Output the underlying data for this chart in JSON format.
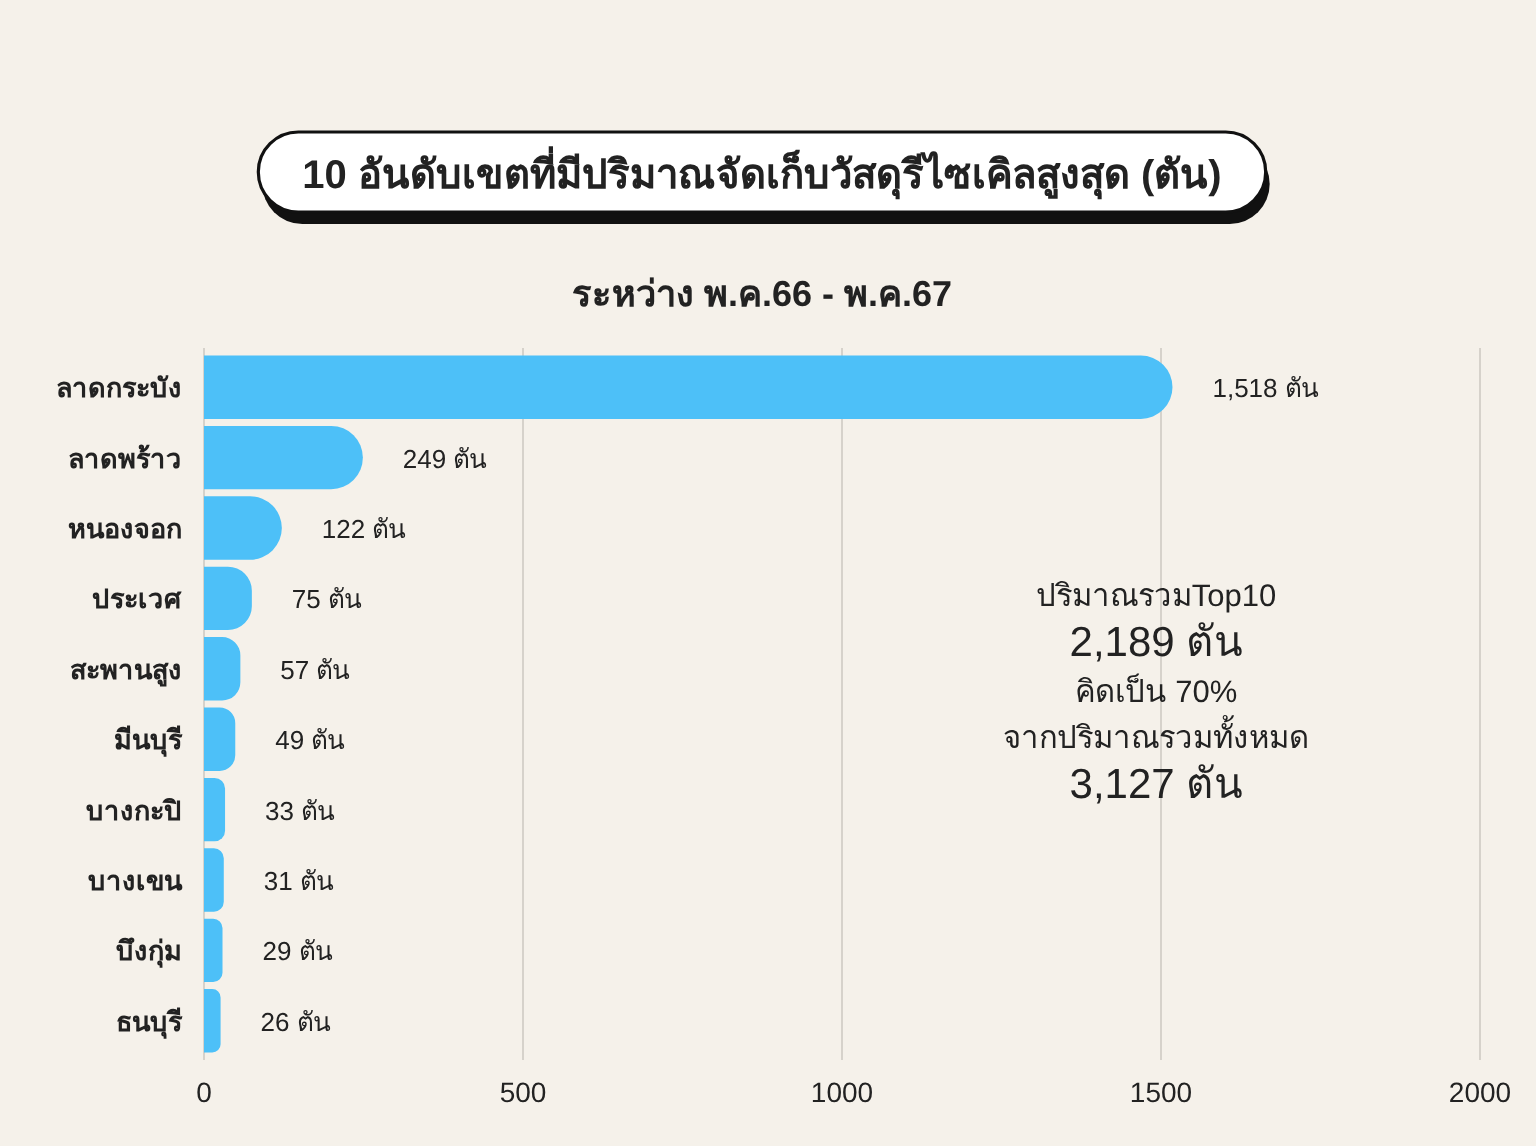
{
  "chart_data": {
    "type": "bar",
    "orientation": "horizontal",
    "title": "10 อันดับเขตที่มีปริมาณจัดเก็บวัสดุรีไซเคิลสูงสุด (ตัน)",
    "subtitle": "ระหว่าง พ.ค.66 - พ.ค.67",
    "categories": [
      "ลาดกระบัง",
      "ลาดพร้าว",
      "หนองจอก",
      "ประเวศ",
      "สะพานสูง",
      "มีนบุรี",
      "บางกะปิ",
      "บางเขน",
      "บึงกุ่ม",
      "ธนบุรี"
    ],
    "values": [
      1518,
      249,
      122,
      75,
      57,
      49,
      33,
      31,
      29,
      26
    ],
    "value_labels": [
      "1,518 ตัน",
      "249 ตัน",
      "122 ตัน",
      "75 ตัน",
      "57 ตัน",
      "49 ตัน",
      "33 ตัน",
      "31 ตัน",
      "29 ตัน",
      "26 ตัน"
    ],
    "color": "#4dc0f8",
    "xlim": [
      0,
      2000
    ],
    "xticks": [
      0,
      500,
      1000,
      1500,
      2000
    ],
    "grid": "x",
    "annotations": [
      "ปริมาณรวมTop10",
      "2,189 ตัน",
      "คิดเป็น 70%",
      "จากปริมาณรวมทั้งหมด",
      "3,127 ตัน"
    ]
  }
}
